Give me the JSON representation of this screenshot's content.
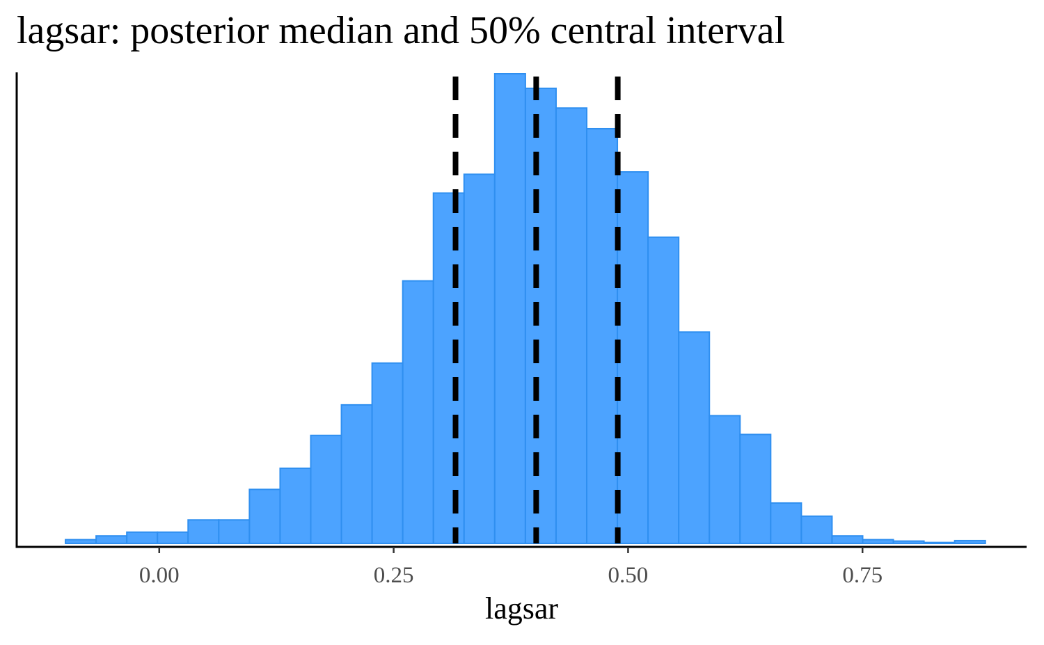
{
  "chart_data": {
    "type": "histogram",
    "title": "lagsar: posterior median and 50% central interval",
    "xlabel": "lagsar",
    "ylabel": "",
    "x_ticks": [
      0.0,
      0.25,
      0.5,
      0.75
    ],
    "x_tick_labels": [
      "0.00",
      "0.25",
      "0.50",
      "0.75"
    ],
    "xlim": [
      -0.152,
      0.925
    ],
    "bin_edges": [
      -0.1,
      -0.0673,
      -0.0346,
      -0.0019,
      0.0308,
      0.0635,
      0.0962,
      0.1289,
      0.1616,
      0.1943,
      0.227,
      0.2597,
      0.2924,
      0.3251,
      0.3578,
      0.3905,
      0.4232,
      0.4559,
      0.4886,
      0.5213,
      0.554,
      0.5867,
      0.6194,
      0.6521,
      0.6848,
      0.7175,
      0.7502,
      0.7829,
      0.8156,
      0.8483,
      0.881
    ],
    "counts": [
      0.8,
      1.6,
      2.4,
      2.4,
      5.0,
      5.0,
      11.5,
      16.0,
      23.0,
      29.5,
      38.4,
      55.9,
      74.6,
      78.6,
      100,
      96.9,
      92.7,
      88.3,
      79.1,
      65.2,
      45.0,
      27.2,
      23.2,
      8.6,
      5.8,
      1.6,
      0.8,
      0.5,
      0.2,
      0.6
    ],
    "count_scale": "relative, tallest bin = 100",
    "vlines": {
      "lower_25": 0.316,
      "median": 0.402,
      "upper_75": 0.489,
      "style": "dashed",
      "color": "#000000"
    },
    "bar_fill": "#4CA3FF",
    "bar_edge": "#2F8FF0",
    "grid": false,
    "legend": "none",
    "y_axis_ticks": "none"
  }
}
